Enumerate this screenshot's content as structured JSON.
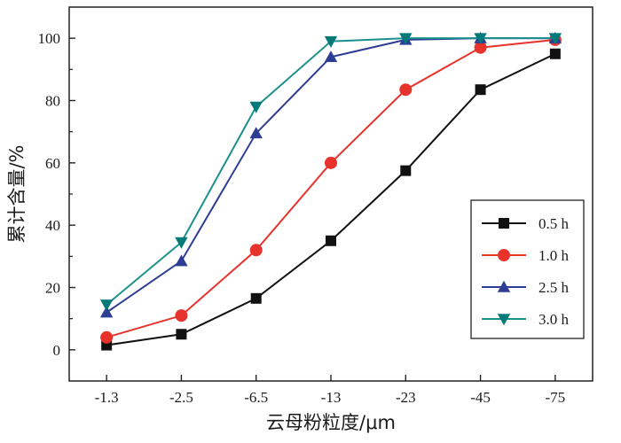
{
  "chart_data": {
    "type": "line",
    "title": "",
    "xlabel": "云母粉粒度/μm",
    "ylabel": "累计含量/%",
    "categories": [
      "-1.3",
      "-2.5",
      "-6.5",
      "-13",
      "-23",
      "-45",
      "-75"
    ],
    "ylim": [
      -10,
      110
    ],
    "yticks": [
      0,
      20,
      40,
      60,
      80,
      100
    ],
    "grid": false,
    "legend_position": "bottom-right",
    "series": [
      {
        "name": "0.5 h",
        "marker": "square",
        "color": "#111111",
        "line_color": "#111111",
        "values": [
          1.5,
          5,
          16.5,
          35,
          57.5,
          83.5,
          95
        ]
      },
      {
        "name": "1.0 h",
        "marker": "circle",
        "color": "#e8332c",
        "line_color": "#e8332c",
        "values": [
          4,
          11,
          32,
          60,
          83.5,
          97,
          99.5
        ]
      },
      {
        "name": "2.5 h",
        "marker": "triangle-up",
        "color": "#2e3d94",
        "line_color": "#2e3d94",
        "values": [
          12,
          28.5,
          69.5,
          94,
          99.5,
          100,
          100
        ]
      },
      {
        "name": "3.0 h",
        "marker": "triangle-down",
        "color": "#007a78",
        "line_color": "#1a8f8c",
        "values": [
          14.5,
          34.5,
          78,
          99,
          100,
          100,
          100
        ]
      }
    ]
  }
}
